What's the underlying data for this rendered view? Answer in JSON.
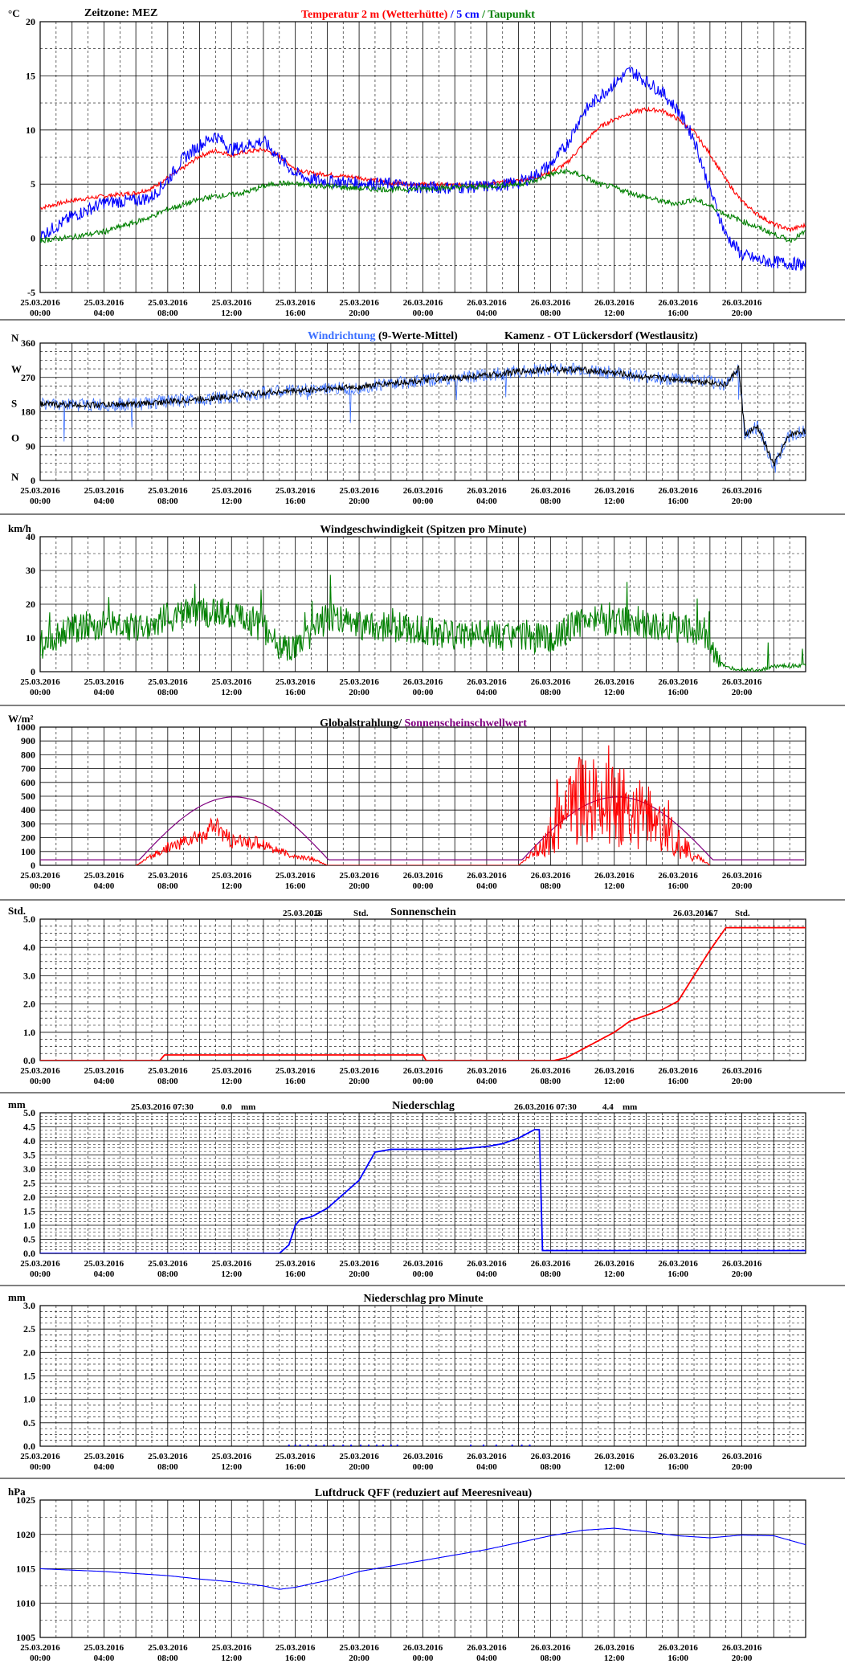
{
  "x_ticks_top": [
    "25.03.2016",
    "25.03.2016",
    "25.03.2016",
    "25.03.2016",
    "25.03.2016",
    "25.03.2016",
    "26.03.2016",
    "26.03.2016",
    "26.03.2016",
    "26.03.2016",
    "26.03.2016",
    "26.03.2016"
  ],
  "x_ticks_bottom": [
    "00:00",
    "04:00",
    "08:00",
    "12:00",
    "16:00",
    "20:00",
    "00:00",
    "04:00",
    "08:00",
    "12:00",
    "16:00",
    "20:00"
  ],
  "colors": {
    "red": "#ff0000",
    "blue": "#0000ff",
    "green": "#008000",
    "lightblue": "#3a6fff",
    "purple": "#800080",
    "black": "#000000"
  },
  "chart_data": [
    {
      "id": "temperature",
      "type": "line",
      "ylabel": "°C",
      "ylim": [
        -5,
        20
      ],
      "y_ticks": [
        "20",
        "15",
        "10",
        "5",
        "0",
        "-5"
      ],
      "y_tick_values": [
        20,
        15,
        10,
        5,
        0,
        -5
      ],
      "timezone": "Zeitzone: MEZ",
      "title_parts": [
        {
          "text": "Temperatur 2 m (Wetterhütte)",
          "color": "#ff0000"
        },
        {
          "text": " / ",
          "color": "#0000ff"
        },
        {
          "text": "5 cm",
          "color": "#0000ff"
        },
        {
          "text": " / ",
          "color": "#008000"
        },
        {
          "text": "Taupunkt",
          "color": "#008000"
        }
      ],
      "x_hours": [
        0,
        2,
        4,
        6,
        7,
        8,
        9,
        10,
        11,
        12,
        13,
        14,
        15,
        16,
        17,
        18,
        20,
        22,
        24,
        26,
        28,
        30,
        31,
        32,
        33,
        34,
        35,
        36,
        37,
        38,
        39,
        40,
        41,
        42,
        43,
        44,
        45,
        46,
        47,
        48
      ],
      "series": [
        {
          "color": "#ff0000",
          "values": [
            2.8,
            3.5,
            3.9,
            4.2,
            4.6,
            5.6,
            6.5,
            7.6,
            8.1,
            7.7,
            8.0,
            8.2,
            7.6,
            6.4,
            6.0,
            5.9,
            5.6,
            5.1,
            5.0,
            4.9,
            5.0,
            5.3,
            5.6,
            6.1,
            6.9,
            8.6,
            10.2,
            11.0,
            11.6,
            11.9,
            11.8,
            11.0,
            9.8,
            7.8,
            5.4,
            3.4,
            2.2,
            1.3,
            0.8,
            1.2
          ],
          "noise": 0.2
        },
        {
          "color": "#0000ff",
          "values": [
            0.2,
            2.0,
            3.3,
            3.5,
            3.8,
            5.4,
            7.4,
            8.6,
            9.5,
            8.2,
            8.6,
            9.0,
            7.4,
            6.0,
            5.4,
            5.3,
            5.1,
            5.0,
            4.7,
            4.7,
            4.8,
            5.1,
            5.8,
            6.8,
            8.6,
            11.5,
            13.0,
            14.3,
            15.5,
            14.5,
            13.5,
            11.8,
            9.2,
            4.5,
            0.3,
            -1.5,
            -2.0,
            -2.2,
            -2.3,
            -2.5
          ],
          "noise": 0.6
        },
        {
          "color": "#008000",
          "values": [
            -0.2,
            0.1,
            0.6,
            1.5,
            2.0,
            2.7,
            3.1,
            3.6,
            3.9,
            4.0,
            4.3,
            4.8,
            5.1,
            5.0,
            4.9,
            4.8,
            4.6,
            4.5,
            4.6,
            4.7,
            4.8,
            5.0,
            5.3,
            5.9,
            6.2,
            5.8,
            5.0,
            4.7,
            4.2,
            3.8,
            3.4,
            3.2,
            3.6,
            3.0,
            2.2,
            1.6,
            1.0,
            0.4,
            -0.2,
            0.6
          ],
          "noise": 0.25
        }
      ]
    },
    {
      "id": "wind_direction",
      "type": "line",
      "ylim": [
        0,
        360
      ],
      "y_ticks": [
        "360",
        "270",
        "180",
        "90",
        "0"
      ],
      "y_tick_values": [
        360,
        270,
        180,
        90,
        0
      ],
      "compass": [
        {
          "label": "N",
          "value": 360
        },
        {
          "label": "W",
          "value": 270
        },
        {
          "label": "S",
          "value": 180
        },
        {
          "label": "O",
          "value": 90
        },
        {
          "label": "N",
          "value": 0
        }
      ],
      "title_left": "Windrichtung",
      "title_left_color": "#3a6fff",
      "title_left_suffix": " (9-Werte-Mittel)",
      "title_right": "Kamenz - OT Lückersdorf (Westlausitz)",
      "x_hours": [
        0,
        3,
        6,
        9,
        12,
        14,
        16,
        18,
        20,
        22,
        24,
        26,
        28,
        30,
        32,
        34,
        36,
        38,
        40,
        42,
        43,
        43.8,
        44.2,
        45,
        46,
        47,
        48
      ],
      "series": [
        {
          "color": "#000000",
          "raw_color": "#3a6fff",
          "values": [
            200,
            198,
            200,
            210,
            220,
            230,
            235,
            240,
            245,
            255,
            262,
            268,
            275,
            285,
            292,
            290,
            282,
            270,
            265,
            258,
            250,
            295,
            120,
            140,
            40,
            120,
            130
          ]
        }
      ]
    },
    {
      "id": "wind_speed",
      "type": "line",
      "ylabel": "km/h",
      "ylim": [
        0,
        40
      ],
      "y_ticks": [
        "40",
        "30",
        "20",
        "10",
        "0"
      ],
      "y_tick_values": [
        40,
        30,
        20,
        10,
        0
      ],
      "title": "Windgeschwindigkeit (Spitzen pro Minute)",
      "x_hours": [
        0,
        2,
        4,
        6,
        8,
        10,
        12,
        14,
        15,
        16,
        18,
        20,
        22,
        24,
        26,
        28,
        30,
        32,
        34,
        36,
        38,
        40,
        42,
        42.5,
        43,
        45,
        46,
        48
      ],
      "series": [
        {
          "color": "#008000",
          "values": [
            8,
            13,
            14,
            13,
            16,
            18,
            17,
            13,
            8,
            6,
            16,
            14,
            13,
            12,
            11,
            11,
            10,
            10,
            15,
            15,
            14,
            13,
            10,
            4,
            1,
            0.5,
            1.5,
            2
          ]
        }
      ]
    },
    {
      "id": "global_radiation",
      "type": "line",
      "ylabel": "W/m²",
      "ylim": [
        0,
        1000
      ],
      "y_ticks": [
        "1000",
        "900",
        "800",
        "700",
        "600",
        "500",
        "400",
        "300",
        "200",
        "100",
        "0"
      ],
      "y_tick_values": [
        1000,
        900,
        800,
        700,
        600,
        500,
        400,
        300,
        200,
        100,
        0
      ],
      "title_left": "Globalstrahlung/ ",
      "title_right": "Sonnenscheinschwellwert",
      "title_right_color": "#800080",
      "threshold_baseline": 40,
      "threshold_peak": 495,
      "threshold_day1": [
        5.9,
        18.4
      ],
      "threshold_day2": [
        29.9,
        42.5
      ],
      "x_hours": [
        6,
        8,
        10,
        11,
        12,
        13,
        14,
        15,
        16,
        17,
        18,
        30,
        32,
        33,
        34,
        35,
        36,
        37,
        38,
        39,
        40,
        41,
        42
      ],
      "series": [
        {
          "color": "#ff0000",
          "values": [
            0,
            130,
            210,
            280,
            170,
            170,
            160,
            100,
            60,
            50,
            0,
            0,
            200,
            500,
            560,
            620,
            520,
            500,
            430,
            310,
            200,
            80,
            0
          ]
        }
      ]
    },
    {
      "id": "sunshine",
      "type": "line",
      "ylabel": "Std.",
      "ylim": [
        0,
        5
      ],
      "y_ticks": [
        "5.0",
        "4.0",
        "3.0",
        "2.0",
        "1.0",
        "0.0"
      ],
      "y_tick_values": [
        5,
        4,
        3,
        2,
        1,
        0
      ],
      "title": "Sonnenschein",
      "summary": [
        {
          "date": "25.03.2016",
          "value": "0.2",
          "unit": "Std."
        },
        {
          "date": "26.03.2016",
          "value": "4.7",
          "unit": "Std."
        }
      ],
      "x_hours": [
        0,
        7.5,
        7.8,
        24,
        24.2,
        32.2,
        33,
        34,
        35,
        36,
        37,
        38,
        39,
        40,
        41,
        42,
        43,
        48
      ],
      "series": [
        {
          "color": "#ff0000",
          "values": [
            0,
            0,
            0.2,
            0.2,
            0,
            0,
            0.1,
            0.4,
            0.7,
            1.0,
            1.4,
            1.6,
            1.8,
            2.1,
            3.0,
            3.9,
            4.7,
            4.7
          ]
        }
      ]
    },
    {
      "id": "precipitation",
      "type": "line",
      "ylabel": "mm",
      "ylim": [
        0,
        5
      ],
      "y_ticks": [
        "5.0",
        "4.5",
        "4.0",
        "3.5",
        "3.0",
        "2.5",
        "2.0",
        "1.5",
        "1.0",
        "0.5",
        "0.0"
      ],
      "y_tick_values": [
        5,
        4.5,
        4,
        3.5,
        3,
        2.5,
        2,
        1.5,
        1,
        0.5,
        0
      ],
      "title": "Niederschlag",
      "summary": [
        {
          "date": "25.03.2016 07:30",
          "value": "0.0",
          "unit": "mm"
        },
        {
          "date": "26.03.2016 07:30",
          "value": "4.4",
          "unit": "mm"
        }
      ],
      "x_hours": [
        0,
        15,
        15.6,
        16,
        16.3,
        17,
        18,
        19,
        20,
        20.5,
        21,
        22,
        24,
        26,
        28,
        29,
        30,
        31,
        31.3,
        31.5,
        48
      ],
      "series": [
        {
          "color": "#0000ff",
          "values": [
            0,
            0,
            0.3,
            1.0,
            1.2,
            1.3,
            1.6,
            2.1,
            2.6,
            3.1,
            3.6,
            3.7,
            3.7,
            3.7,
            3.8,
            3.9,
            4.1,
            4.4,
            4.4,
            0.1,
            0.1
          ]
        }
      ]
    },
    {
      "id": "precip_per_minute",
      "type": "bar",
      "ylabel": "mm",
      "ylim": [
        0,
        3
      ],
      "y_ticks": [
        "3.0",
        "2.5",
        "2.0",
        "1.5",
        "1.0",
        "0.5",
        "0.0"
      ],
      "y_tick_values": [
        3,
        2.5,
        2,
        1.5,
        1,
        0.5,
        0
      ],
      "title": "Niederschlag pro Minute",
      "x_hours": [
        15.6,
        16.0,
        16.3,
        16.8,
        17.3,
        17.8,
        18.4,
        19.0,
        19.5,
        20.1,
        20.6,
        21.1,
        21.5,
        22.0,
        22.4,
        27.0,
        27.8,
        28.6,
        29.6,
        30.2,
        30.7
      ],
      "series": [
        {
          "color": "#0000ff",
          "values": [
            0.1,
            0.1,
            0.1,
            0.1,
            0.1,
            0.1,
            0.1,
            0.1,
            0.1,
            0.1,
            0.1,
            0.1,
            0.1,
            0.1,
            0.1,
            0.1,
            0.1,
            0.1,
            0.1,
            0.1,
            0.1
          ]
        }
      ]
    },
    {
      "id": "pressure",
      "type": "line",
      "ylabel": "hPa",
      "ylim": [
        1005,
        1025
      ],
      "y_ticks": [
        "1025",
        "1020",
        "1015",
        "1010",
        "1005"
      ],
      "y_tick_values": [
        1025,
        1020,
        1015,
        1010,
        1005
      ],
      "title": "Luftdruck QFF (reduziert auf Meeresniveau)",
      "x_hours": [
        0,
        2,
        4,
        6,
        8,
        10,
        12,
        14,
        15,
        16,
        18,
        20,
        22,
        24,
        26,
        28,
        30,
        32,
        34,
        36,
        38,
        40,
        42,
        44,
        46,
        48
      ],
      "series": [
        {
          "color": "#0000ff",
          "values": [
            1015,
            1014.8,
            1014.6,
            1014.3,
            1014.0,
            1013.5,
            1013.1,
            1012.5,
            1012.0,
            1012.3,
            1013.3,
            1014.6,
            1015.4,
            1016.2,
            1017.0,
            1017.8,
            1018.8,
            1019.8,
            1020.6,
            1020.9,
            1020.4,
            1019.8,
            1019.5,
            1019.9,
            1019.8,
            1018.5
          ]
        }
      ]
    }
  ]
}
